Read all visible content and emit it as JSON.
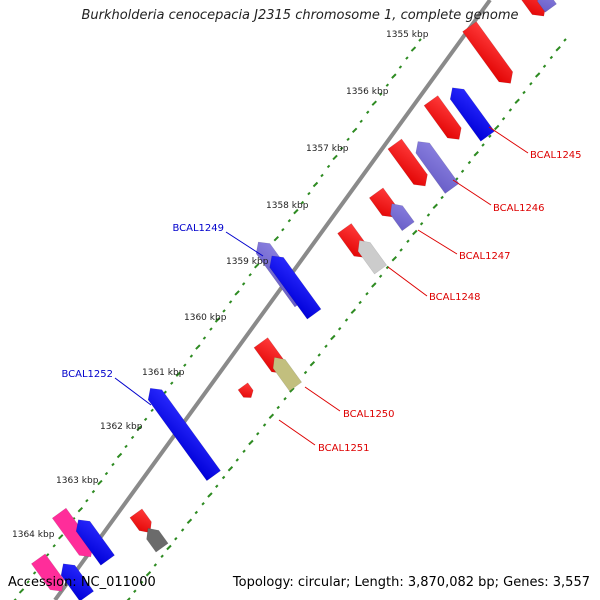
{
  "title": "Burkholderia cenocepacia J2315 chromosome 1, complete genome",
  "footer": {
    "accession": "Accession: NC_011000",
    "summary": "Topology: circular; Length: 3,870,082 bp; Genes: 3,557"
  },
  "ruler": [
    {
      "label": "1355 kbp"
    },
    {
      "label": "1356 kbp"
    },
    {
      "label": "1357 kbp"
    },
    {
      "label": "1358 kbp"
    },
    {
      "label": "1359 kbp"
    },
    {
      "label": "1360 kbp"
    },
    {
      "label": "1361 kbp"
    },
    {
      "label": "1362 kbp"
    },
    {
      "label": "1363 kbp"
    },
    {
      "label": "1364 kbp"
    }
  ],
  "gene_labels": [
    {
      "label": "BCAL1245",
      "color": "#dd0000"
    },
    {
      "label": "BCAL1246",
      "color": "#dd0000"
    },
    {
      "label": "BCAL1247",
      "color": "#dd0000"
    },
    {
      "label": "BCAL1248",
      "color": "#dd0000"
    },
    {
      "label": "BCAL1249",
      "color": "#0000cc"
    },
    {
      "label": "BCAL1250",
      "color": "#dd0000"
    },
    {
      "label": "BCAL1251",
      "color": "#dd0000"
    },
    {
      "label": "BCAL1252",
      "color": "#0000cc"
    }
  ],
  "colors": {
    "forward_cds": "#ff0000",
    "reverse_cds": "#0000ff",
    "lavender": "#7a6fd0",
    "grey": "#cccccc",
    "khaki": "#c2bf7e",
    "dark_grey": "#6b6b6b",
    "magenta": "#ff2d9a",
    "backbone": "#8a8a8a",
    "gc_dots": "#2e8b22"
  }
}
